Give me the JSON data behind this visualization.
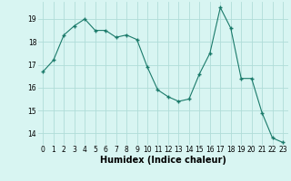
{
  "x": [
    0,
    1,
    2,
    3,
    4,
    5,
    6,
    7,
    8,
    9,
    10,
    11,
    12,
    13,
    14,
    15,
    16,
    17,
    18,
    19,
    20,
    21,
    22,
    23
  ],
  "y": [
    16.7,
    17.2,
    18.3,
    18.7,
    19.0,
    18.5,
    18.5,
    18.2,
    18.3,
    18.1,
    16.9,
    15.9,
    15.6,
    15.4,
    15.5,
    16.6,
    17.5,
    19.5,
    18.6,
    16.4,
    16.4,
    14.9,
    13.8,
    13.6
  ],
  "xlabel": "Humidex (Indice chaleur)",
  "bg_color": "#d8f5f2",
  "grid_color": "#b0ddd8",
  "line_color": "#1a7a6a",
  "marker_color": "#1a7a6a",
  "xlim": [
    -0.5,
    23.5
  ],
  "ylim": [
    13.5,
    19.75
  ],
  "yticks": [
    14,
    15,
    16,
    17,
    18,
    19
  ],
  "xticks": [
    0,
    1,
    2,
    3,
    4,
    5,
    6,
    7,
    8,
    9,
    10,
    11,
    12,
    13,
    14,
    15,
    16,
    17,
    18,
    19,
    20,
    21,
    22,
    23
  ],
  "tick_fontsize": 5.5,
  "xlabel_fontsize": 7
}
